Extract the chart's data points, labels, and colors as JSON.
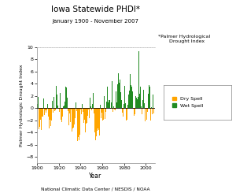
{
  "title": "Iowa Statewide PHDI*",
  "subtitle": "January 1900 - November 2007",
  "xlabel": "Year",
  "ylabel": "Palmer Hydrologic Drought Index",
  "footnote": "National Climatic Data Center / NESDIS / NOAA",
  "legend_note": "*Palmer Hydrological\n    Drought Index",
  "legend_dry": "Dry Spell",
  "legend_wet": "Wet Spell",
  "ylim": [
    -9.0,
    10.0
  ],
  "yticks": [
    -8.0,
    -6.0,
    -4.0,
    -2.0,
    0.0,
    2.0,
    4.0,
    6.0,
    8.0,
    10.0
  ],
  "xlim": [
    1899.5,
    2008
  ],
  "xticks": [
    1900,
    1920,
    1940,
    1960,
    1980,
    2000
  ],
  "color_dry": "#FFA500",
  "color_wet": "#228B22",
  "background_color": "#ffffff",
  "seed": 42
}
